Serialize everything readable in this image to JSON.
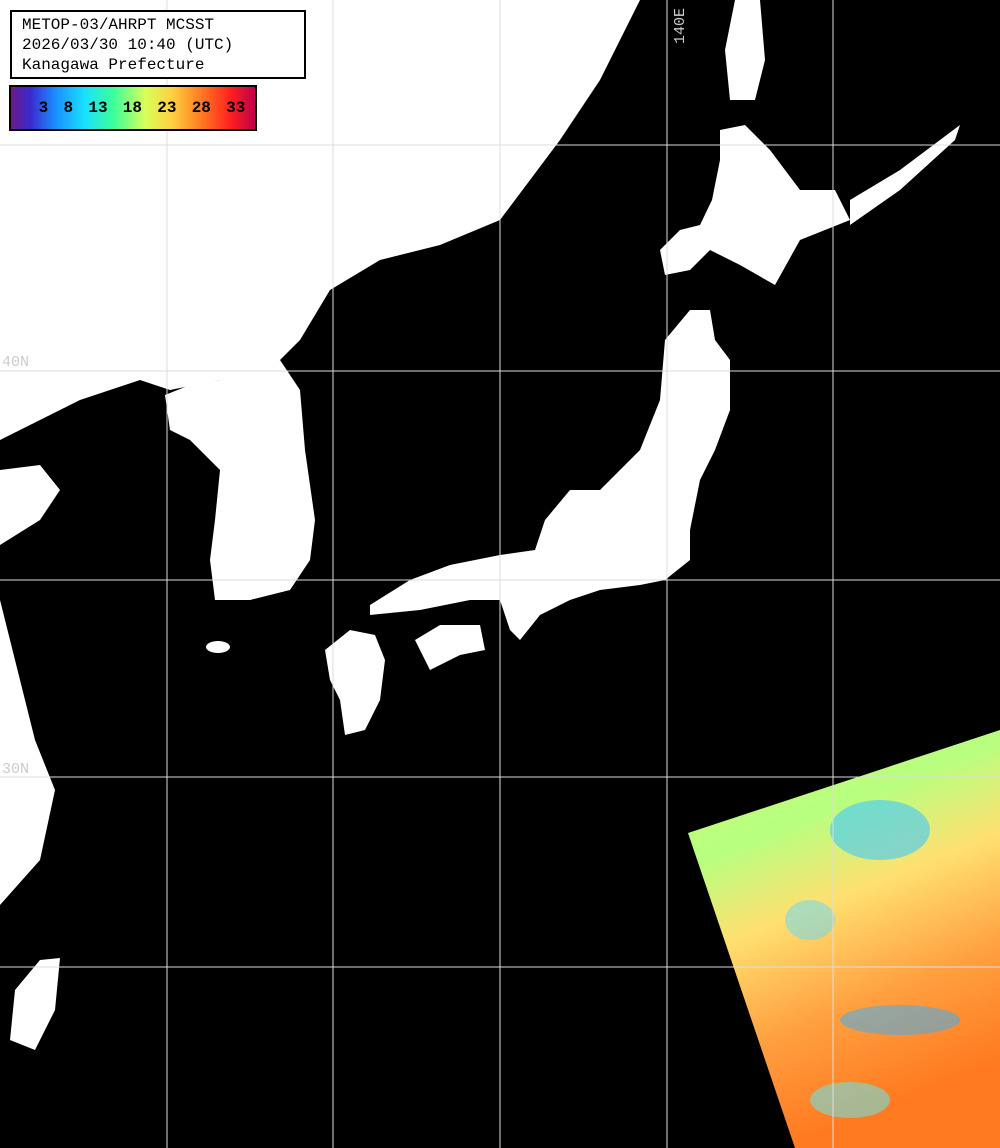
{
  "header": {
    "lines": [
      "METOP-03/AHRPT MCSST",
      "2026/03/30 10:40 (UTC)",
      "Kanagawa Prefecture"
    ]
  },
  "legend": {
    "ticks": [
      3,
      8,
      13,
      18,
      23,
      28,
      33
    ]
  },
  "grid_labels": {
    "lat": [
      "40N",
      "30N"
    ],
    "lon": [
      "140E"
    ]
  }
}
